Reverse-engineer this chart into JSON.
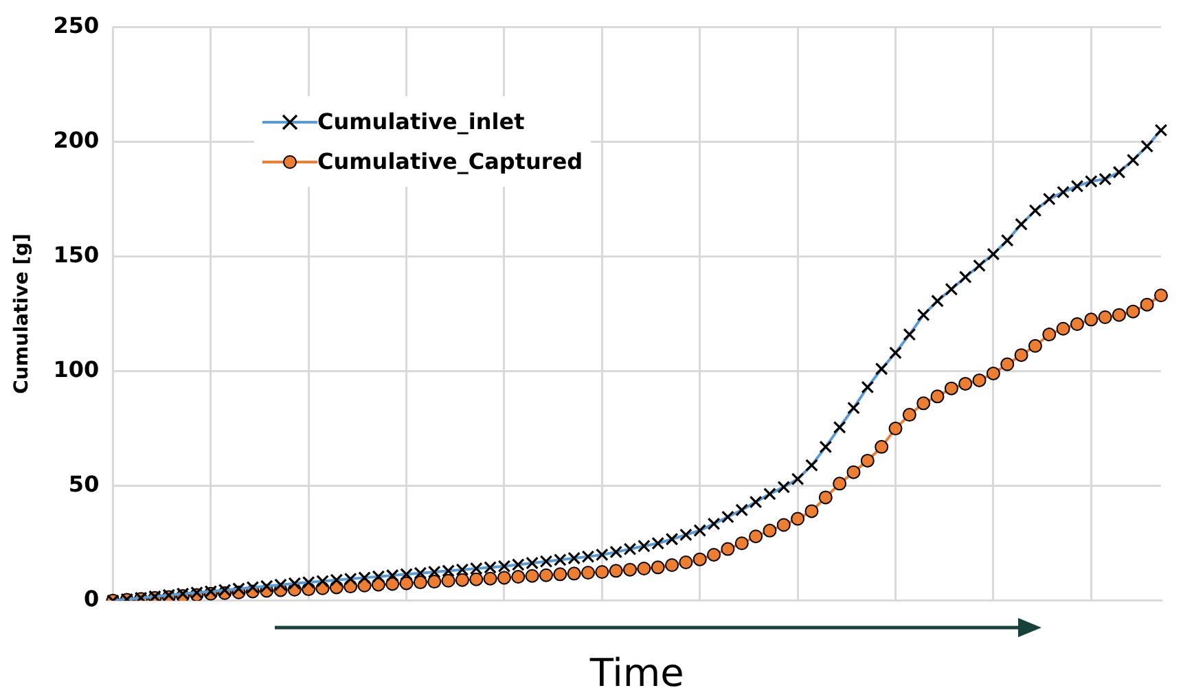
{
  "chart_data": {
    "type": "line",
    "xlabel": "Time",
    "ylabel": "Cumulative [g]",
    "categories": [
      null,
      null,
      null,
      null,
      null,
      null,
      null,
      null,
      null,
      null,
      null,
      null,
      null,
      null,
      null,
      null,
      null,
      null,
      null,
      null,
      null,
      null,
      null,
      null,
      null,
      null,
      null,
      null,
      null,
      null,
      null,
      null,
      null,
      null,
      null,
      null,
      null,
      null,
      null,
      null,
      null,
      null,
      null,
      null,
      null,
      null,
      null,
      null,
      null,
      null,
      null,
      null,
      null,
      null,
      null,
      null,
      null,
      null,
      null,
      null,
      null,
      null,
      null,
      null,
      null,
      null,
      null,
      null,
      null,
      null,
      null,
      null,
      null,
      null,
      null,
      null
    ],
    "series": [
      {
        "name": "Cumulative_inlet",
        "color": "#5b9bd5",
        "marker": "cross",
        "values": [
          0,
          0.6,
          1.2,
          1.8,
          2.4,
          3,
          3.5,
          4,
          4.6,
          5.2,
          5.8,
          6.3,
          6.9,
          7.5,
          8,
          8.5,
          9,
          9.5,
          10,
          10.5,
          11,
          11.5,
          12,
          12.5,
          13,
          13.5,
          14,
          14.5,
          15,
          15.7,
          16.4,
          17.1,
          17.8,
          18.5,
          19.2,
          20,
          21.2,
          22.5,
          23.8,
          25,
          26.8,
          28.7,
          30.6,
          33.5,
          36.5,
          39.5,
          43,
          46.5,
          49.5,
          53,
          59,
          67,
          75.5,
          84,
          93,
          101,
          108,
          116,
          124.5,
          130.6,
          135.7,
          141,
          146,
          151,
          157,
          164,
          170,
          175,
          178,
          180.6,
          182.7,
          183.7,
          186.7,
          192,
          198,
          205
        ]
      },
      {
        "name": "Cumulative_Captured",
        "color": "#ed7d31",
        "marker": "circle",
        "values": [
          0,
          0.4,
          0.8,
          1.2,
          1.6,
          2,
          2.5,
          3,
          3.3,
          3.6,
          4,
          4.3,
          4.6,
          4.8,
          5,
          5.4,
          5.8,
          6.2,
          6.6,
          7,
          7.3,
          7.6,
          8,
          8.3,
          8.7,
          9,
          9.3,
          9.6,
          10,
          10.4,
          10.8,
          11.1,
          11.5,
          11.8,
          12.2,
          12.5,
          13,
          13.5,
          14,
          14.5,
          15.5,
          16.7,
          18,
          20,
          22.5,
          25,
          28,
          30.5,
          33,
          35.7,
          39,
          45,
          51,
          56,
          61,
          67,
          75,
          81,
          86,
          89,
          92.5,
          94.5,
          96,
          99,
          103,
          107,
          111,
          116,
          118.5,
          120.5,
          122.5,
          123.5,
          124.5,
          126,
          129,
          133
        ]
      }
    ],
    "ylim": [
      0,
      250
    ],
    "yticks": [
      0,
      50,
      100,
      150,
      200,
      250
    ],
    "grid": true,
    "legend": "top left",
    "tick_labels": "y",
    "line_style": "solid"
  }
}
